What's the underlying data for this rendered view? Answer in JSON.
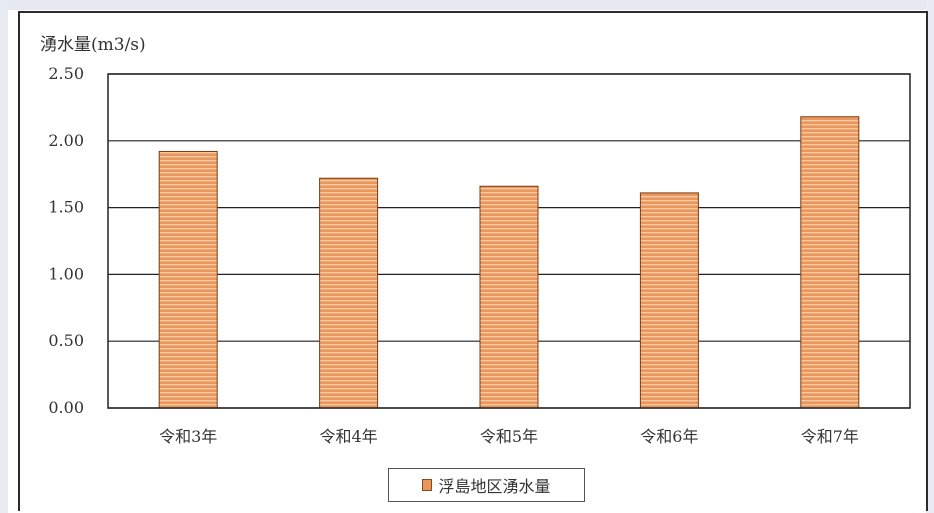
{
  "chart_data": {
    "type": "bar",
    "ylabel": "湧水量(m3/s)",
    "categories": [
      "令和3年",
      "令和4年",
      "令和5年",
      "令和6年",
      "令和7年"
    ],
    "series": [
      {
        "name": "浮島地区湧水量",
        "values": [
          1.92,
          1.72,
          1.66,
          1.61,
          2.18
        ]
      }
    ],
    "ylim": [
      0,
      2.5
    ],
    "yticks": [
      "0.00",
      "0.50",
      "1.00",
      "1.50",
      "2.00",
      "2.50"
    ],
    "grid": true,
    "legend_position": "bottom",
    "colors": {
      "bar_fill": "#e9975c",
      "bar_stripe": "#f6c9a3",
      "bar_edge": "#7a3d14"
    }
  }
}
